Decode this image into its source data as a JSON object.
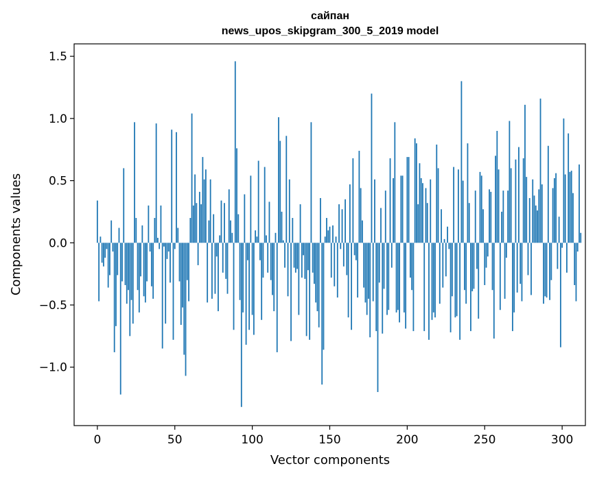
{
  "chart_data": {
    "type": "bar",
    "title_line1": "сайпан",
    "title_line2": "news_upos_skipgram_300_5_2019 model",
    "xlabel": "Vector components",
    "ylabel": "Components values",
    "xlim": [
      -15,
      315
    ],
    "ylim": [
      -1.47,
      1.6
    ],
    "xticks": [
      0,
      50,
      100,
      150,
      200,
      250,
      300
    ],
    "xtick_labels": [
      "0",
      "50",
      "100",
      "150",
      "200",
      "250",
      "300"
    ],
    "yticks": [
      -1.0,
      -0.5,
      0.0,
      0.5,
      1.0,
      1.5
    ],
    "ytick_labels": [
      "−1.0",
      "−0.5",
      "0.0",
      "0.5",
      "1.0",
      "1.5"
    ],
    "bar_color": "#1f77b4",
    "values": [
      0.34,
      -0.47,
      0.05,
      -0.16,
      -0.19,
      -0.12,
      -0.05,
      -0.36,
      -0.26,
      0.18,
      -0.07,
      -0.88,
      -0.67,
      -0.26,
      0.12,
      -1.22,
      -0.31,
      0.6,
      -0.34,
      -0.49,
      -0.38,
      -0.75,
      -0.46,
      -0.65,
      0.97,
      0.2,
      -0.38,
      -0.56,
      -0.27,
      0.14,
      -0.43,
      -0.48,
      -0.31,
      0.3,
      -0.07,
      -0.35,
      -0.45,
      0.2,
      0.96,
      0.04,
      -0.05,
      0.3,
      -0.85,
      -0.03,
      -0.65,
      -0.13,
      -0.07,
      -0.32,
      0.91,
      -0.78,
      -0.05,
      0.89,
      0.12,
      -0.31,
      -0.66,
      -0.52,
      -0.9,
      -1.07,
      -0.3,
      -0.47,
      0.2,
      1.04,
      0.3,
      0.55,
      0.32,
      -0.18,
      0.41,
      0.31,
      0.69,
      0.51,
      0.59,
      -0.48,
      0.18,
      0.51,
      -0.45,
      0.23,
      -0.41,
      -0.11,
      -0.55,
      0.06,
      0.34,
      -0.24,
      0.32,
      -0.29,
      -0.41,
      0.43,
      0.18,
      0.08,
      -0.7,
      1.46,
      0.76,
      0.23,
      -0.46,
      -1.32,
      -0.56,
      0.39,
      -0.82,
      -0.14,
      -0.7,
      0.54,
      -0.58,
      -0.74,
      0.1,
      0.05,
      0.66,
      -0.14,
      -0.62,
      -0.28,
      0.61,
      0.06,
      -0.24,
      0.33,
      -0.3,
      -0.42,
      -0.55,
      0.08,
      -0.88,
      1.01,
      0.82,
      0.25,
      0.02,
      -0.2,
      0.86,
      -0.43,
      0.51,
      -0.79,
      0.2,
      -0.2,
      -0.24,
      -0.21,
      -0.58,
      0.31,
      -0.28,
      -0.1,
      -0.29,
      -0.75,
      -0.22,
      -0.78,
      0.97,
      -0.24,
      -0.33,
      -0.48,
      -0.55,
      -0.68,
      0.36,
      -1.14,
      -0.86,
      0.05,
      0.2,
      0.1,
      0.13,
      -0.28,
      0.14,
      -0.35,
      0.05,
      -0.44,
      0.31,
      -0.05,
      0.27,
      -0.19,
      0.35,
      -0.26,
      -0.6,
      0.47,
      -0.7,
      0.68,
      -0.1,
      -0.14,
      -0.44,
      0.74,
      0.44,
      0.18,
      -0.36,
      -0.48,
      -0.58,
      -0.45,
      -0.76,
      1.2,
      -0.47,
      0.51,
      -0.71,
      -1.2,
      -0.32,
      0.28,
      -0.73,
      -0.37,
      0.42,
      -0.58,
      -0.54,
      0.68,
      -0.2,
      0.52,
      0.97,
      -0.56,
      -0.54,
      -0.64,
      0.54,
      0.54,
      -0.56,
      -0.69,
      0.69,
      0.69,
      -0.28,
      -0.38,
      -0.71,
      0.84,
      0.8,
      0.31,
      0.64,
      0.52,
      0.48,
      -0.71,
      0.44,
      0.32,
      -0.78,
      0.51,
      -0.62,
      -0.56,
      -0.6,
      0.79,
      0.6,
      -0.49,
      0.27,
      -0.36,
      0.03,
      -0.27,
      0.13,
      -0.05,
      -0.72,
      -0.43,
      0.61,
      -0.6,
      -0.59,
      0.59,
      -0.78,
      1.3,
      0.5,
      -0.38,
      -0.49,
      0.8,
      0.32,
      -0.71,
      -0.39,
      -0.37,
      0.42,
      -0.21,
      -0.61,
      0.57,
      0.54,
      0.27,
      -0.34,
      -0.2,
      -0.11,
      0.43,
      0.41,
      -0.38,
      -0.77,
      0.7,
      0.9,
      0.59,
      -0.54,
      0.25,
      0.42,
      -0.45,
      -0.12,
      0.42,
      0.98,
      0.6,
      -0.71,
      -0.56,
      0.67,
      -0.4,
      0.77,
      -0.33,
      -0.47,
      0.68,
      1.11,
      0.53,
      -0.26,
      0.36,
      -0.42,
      0.51,
      0.38,
      0.3,
      0.26,
      0.43,
      1.16,
      0.47,
      -0.49,
      -0.43,
      -0.44,
      0.78,
      -0.46,
      -0.3,
      0.44,
      0.52,
      0.56,
      -0.21,
      0.21,
      -0.84,
      -0.04,
      1.0,
      0.55,
      -0.24,
      0.88,
      0.57,
      0.58,
      0.4,
      -0.34,
      -0.47,
      -0.07,
      0.63,
      0.08
    ]
  }
}
